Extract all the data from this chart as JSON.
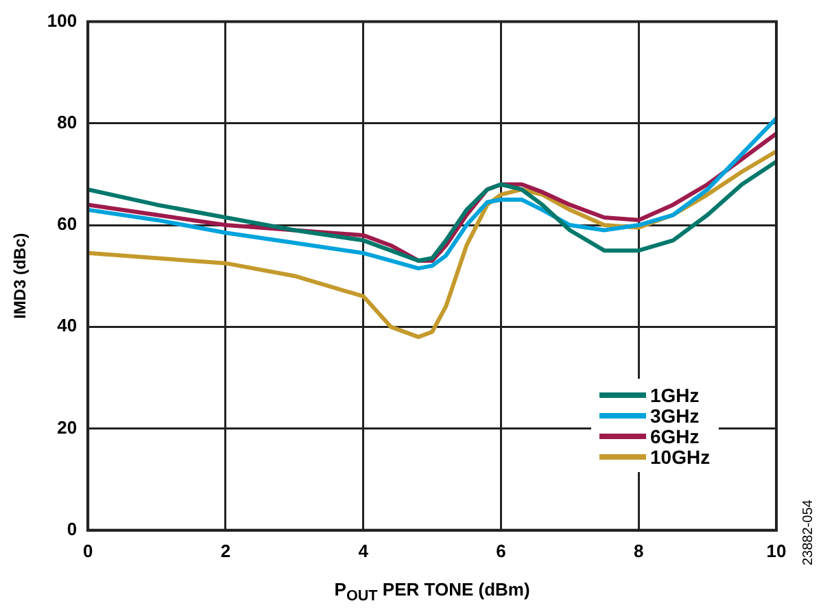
{
  "chart_data": {
    "type": "line",
    "xlabel": "P$_{OUT}$ PER TONE (dBm)",
    "ylabel": "IMD3 (dBc)",
    "annotations": [
      "23882-054"
    ],
    "x": [
      0,
      1,
      2,
      3,
      4,
      4.4,
      4.8,
      5,
      5.2,
      5.5,
      5.8,
      6,
      6.3,
      6.6,
      7,
      7.5,
      8,
      8.5,
      9,
      9.5,
      10
    ],
    "series": [
      {
        "name": "1GHz",
        "color": "#00786b",
        "values": [
          67,
          64,
          61.5,
          59,
          57,
          55,
          53,
          53.5,
          57,
          63,
          67,
          68,
          67,
          64,
          59,
          55,
          55,
          57,
          62,
          68,
          72.5
        ]
      },
      {
        "name": "3GHz",
        "color": "#00a3dc",
        "values": [
          63,
          61,
          58.5,
          56.5,
          54.5,
          53,
          51.5,
          52,
          54,
          60,
          64.5,
          65,
          65,
          63,
          60,
          59,
          60,
          62,
          67,
          74,
          81
        ]
      },
      {
        "name": "6GHz",
        "color": "#9e1b4b",
        "values": [
          64,
          62,
          60,
          59,
          58,
          56,
          53,
          53,
          56,
          62,
          67,
          68,
          68,
          66.5,
          64,
          61.5,
          61,
          64,
          68,
          73,
          78
        ]
      },
      {
        "name": "10GHz",
        "color": "#c49a2c",
        "values": [
          54.5,
          53.5,
          52.5,
          50,
          46,
          40,
          38,
          39,
          44,
          56,
          64,
          66,
          67,
          66,
          63,
          60,
          59.5,
          62,
          66,
          70.5,
          74.5
        ]
      }
    ],
    "xlim": [
      0,
      10
    ],
    "xticks": [
      0,
      2,
      4,
      6,
      8,
      10
    ],
    "ylim": [
      0,
      100
    ],
    "yticks": [
      0,
      20,
      40,
      60,
      80,
      100
    ],
    "grid": true,
    "legend": "bottom right",
    "marker": "none",
    "line_style": "solid"
  }
}
